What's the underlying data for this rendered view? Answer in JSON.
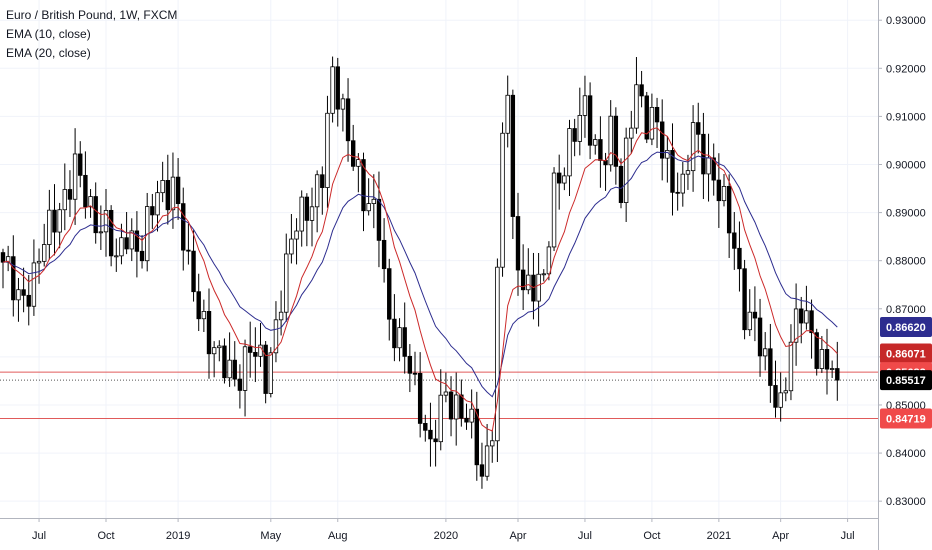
{
  "legend": {
    "symbol": "Euro / British Pound, 1W, FXCM",
    "ema10": "EMA (10, close)",
    "ema20": "EMA (20, close)"
  },
  "colors": {
    "candle": "#000000",
    "ema10": "#cc2a2a",
    "ema20": "#2d2d8f",
    "hline": "#e05a5a",
    "ema20_badge": "#2d2d8f",
    "ema10_badge": "#c62828",
    "level_badge": "#f04a4a",
    "last_badge": "#000000"
  },
  "chart_data": {
    "type": "candlestick",
    "title": "Euro / British Pound, 1W, FXCM",
    "ylim": [
      0.8265,
      0.9342
    ],
    "y_ticks": [
      0.83,
      0.84,
      0.85,
      0.86,
      0.87,
      0.88,
      0.89,
      0.9,
      0.91,
      0.92,
      0.93
    ],
    "y_tick_labels": [
      "0.83000",
      "0.84000",
      "0.85000",
      "0.86000",
      "0.87000",
      "0.88000",
      "0.89000",
      "0.90000",
      "0.91000",
      "0.92000",
      "0.93000"
    ],
    "x_ticks": [
      {
        "label": "Jul",
        "index": 7
      },
      {
        "label": "Oct",
        "index": 20
      },
      {
        "label": "2019",
        "index": 34
      },
      {
        "label": "May",
        "index": 52
      },
      {
        "label": "Aug",
        "index": 65
      },
      {
        "label": "2020",
        "index": 86
      },
      {
        "label": "Apr",
        "index": 100
      },
      {
        "label": "Jul",
        "index": 113
      },
      {
        "label": "Oct",
        "index": 126
      },
      {
        "label": "2021",
        "index": 139
      },
      {
        "label": "Apr",
        "index": 151
      },
      {
        "label": "Jul",
        "index": 164
      }
    ],
    "anchors": [
      [
        0,
        0.878
      ],
      [
        3,
        0.873
      ],
      [
        6,
        0.876
      ],
      [
        10,
        0.89
      ],
      [
        14,
        0.898
      ],
      [
        17,
        0.891
      ],
      [
        20,
        0.887
      ],
      [
        22,
        0.878
      ],
      [
        24,
        0.887
      ],
      [
        27,
        0.882
      ],
      [
        30,
        0.894
      ],
      [
        33,
        0.897
      ],
      [
        36,
        0.877
      ],
      [
        39,
        0.868
      ],
      [
        42,
        0.858
      ],
      [
        45,
        0.856
      ],
      [
        48,
        0.862
      ],
      [
        51,
        0.855
      ],
      [
        54,
        0.874
      ],
      [
        57,
        0.887
      ],
      [
        60,
        0.894
      ],
      [
        62,
        0.898
      ],
      [
        64,
        0.917
      ],
      [
        66,
        0.912
      ],
      [
        68,
        0.903
      ],
      [
        70,
        0.891
      ],
      [
        73,
        0.889
      ],
      [
        75,
        0.868
      ],
      [
        77,
        0.861
      ],
      [
        79,
        0.858
      ],
      [
        81,
        0.851
      ],
      [
        83,
        0.84
      ],
      [
        86,
        0.852
      ],
      [
        89,
        0.85
      ],
      [
        91,
        0.844
      ],
      [
        93,
        0.834
      ],
      [
        95,
        0.848
      ],
      [
        97,
        0.906
      ],
      [
        98,
        0.915
      ],
      [
        99,
        0.884
      ],
      [
        101,
        0.876
      ],
      [
        103,
        0.876
      ],
      [
        105,
        0.874
      ],
      [
        107,
        0.895
      ],
      [
        110,
        0.905
      ],
      [
        113,
        0.91
      ],
      [
        116,
        0.902
      ],
      [
        118,
        0.906
      ],
      [
        120,
        0.892
      ],
      [
        122,
        0.912
      ],
      [
        123,
        0.918
      ],
      [
        125,
        0.908
      ],
      [
        127,
        0.907
      ],
      [
        130,
        0.898
      ],
      [
        132,
        0.894
      ],
      [
        134,
        0.906
      ],
      [
        136,
        0.903
      ],
      [
        138,
        0.898
      ],
      [
        140,
        0.89
      ],
      [
        142,
        0.883
      ],
      [
        144,
        0.871
      ],
      [
        146,
        0.866
      ],
      [
        148,
        0.857
      ],
      [
        150,
        0.853
      ],
      [
        151,
        0.851
      ],
      [
        153,
        0.862
      ],
      [
        155,
        0.869
      ],
      [
        157,
        0.866
      ],
      [
        159,
        0.859
      ],
      [
        161,
        0.857
      ],
      [
        162,
        0.855
      ]
    ],
    "ema10_last": 0.86071,
    "ema20_last": 0.8662,
    "last_close": 0.85517,
    "horizontal_levels": [
      0.85682,
      0.85517,
      0.84719
    ],
    "price_labels": [
      {
        "text": "0.86620",
        "value": 0.8662,
        "color_key": "ema20_badge"
      },
      {
        "text": "0.86071",
        "value": 0.86071,
        "color_key": "ema10_badge"
      },
      {
        "text": "0.85682",
        "value": 0.85682,
        "color_key": "level_badge"
      },
      {
        "text": "0.85517",
        "value": 0.85517,
        "color_key": "last_badge"
      },
      {
        "text": "0.84719",
        "value": 0.84719,
        "color_key": "level_badge"
      }
    ]
  }
}
